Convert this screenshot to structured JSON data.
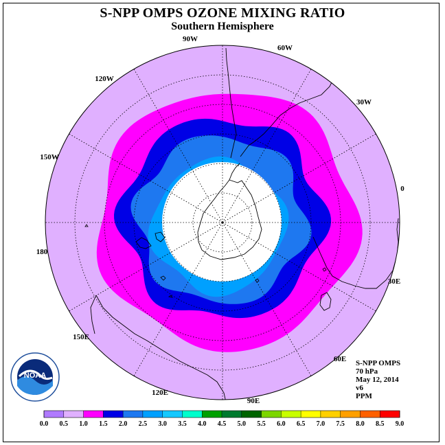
{
  "header": {
    "title": "S-NPP OMPS OZONE MIXING RATIO",
    "subtitle": "Southern Hemisphere"
  },
  "map": {
    "projection": "south-polar-stereographic",
    "longitude_labels": [
      "0",
      "30W",
      "60W",
      "90W",
      "120W",
      "150W",
      "180",
      "150E",
      "120E",
      "90E",
      "60E",
      "30E"
    ],
    "polar_cap_color": "#ffffff",
    "ozone_bands": [
      {
        "range": "0.5-1.0",
        "color": "#e0b0ff"
      },
      {
        "range": "1.0-1.5",
        "color": "#ff00ff"
      },
      {
        "range": "1.5-2.0",
        "color": "#0000e6"
      },
      {
        "range": "2.0-2.5",
        "color": "#1e78f0"
      },
      {
        "range": "2.5-3.0",
        "color": "#00a0ff"
      }
    ]
  },
  "info_box": {
    "instrument": "S-NPP OMPS",
    "pressure": "70 hPa",
    "date": "May 12, 2014",
    "version": "v6",
    "units": "PPM"
  },
  "logo": {
    "text": "NOAA",
    "icon": "noaa-logo-icon"
  },
  "colorbar": {
    "ticks": [
      "0.0",
      "0.5",
      "1.0",
      "1.5",
      "2.0",
      "2.5",
      "3.0",
      "3.5",
      "4.0",
      "4.5",
      "5.0",
      "5.5",
      "6.0",
      "6.5",
      "7.0",
      "7.5",
      "8.0",
      "8.5",
      "9.0"
    ],
    "colors": [
      "#b07aff",
      "#e0b0ff",
      "#ff00ff",
      "#0000e6",
      "#1e78f0",
      "#00a0ff",
      "#14c8ff",
      "#00ffcc",
      "#00a000",
      "#007a2e",
      "#006400",
      "#7cd600",
      "#c8ff00",
      "#ffff00",
      "#ffd000",
      "#ffa000",
      "#ff6000",
      "#ff0000",
      "#8b5a2b"
    ]
  }
}
